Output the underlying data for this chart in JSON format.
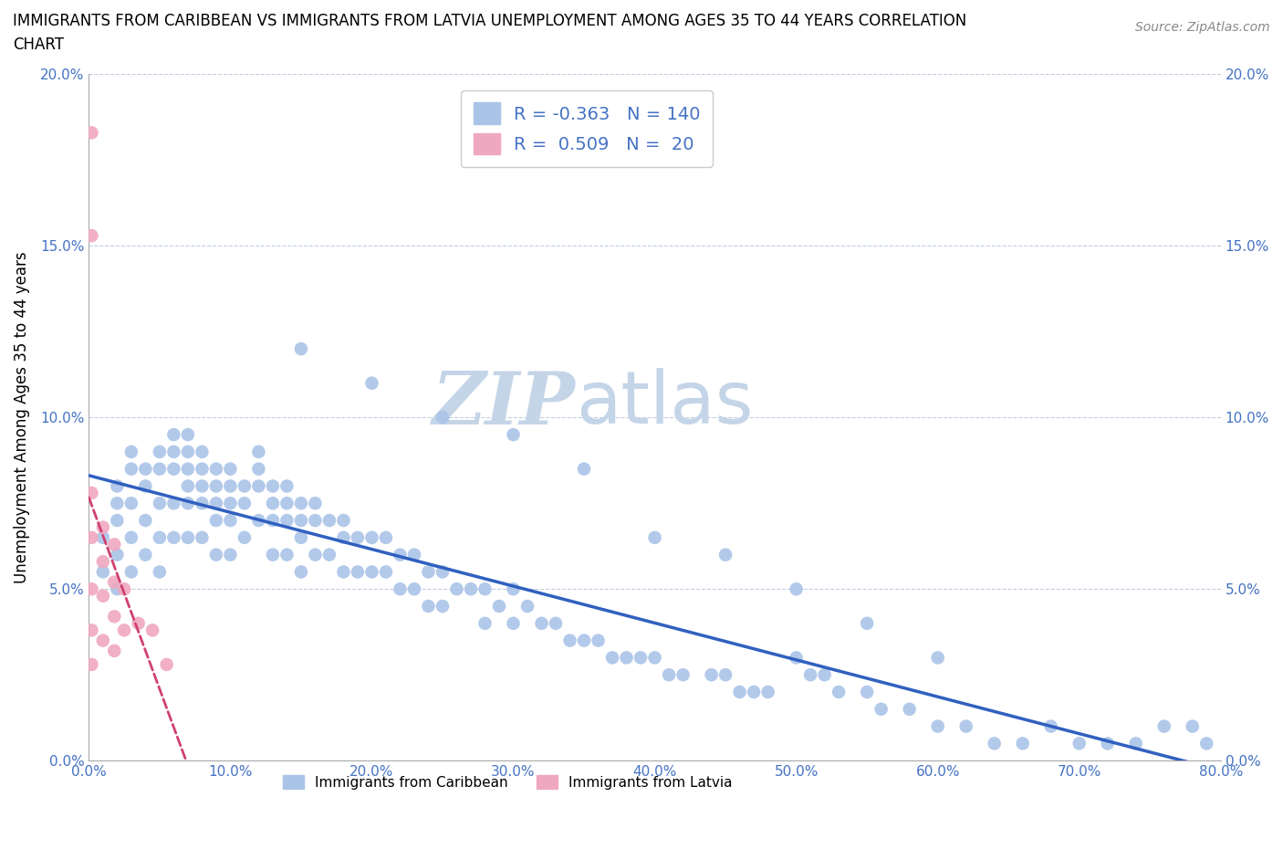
{
  "title_line1": "IMMIGRANTS FROM CARIBBEAN VS IMMIGRANTS FROM LATVIA UNEMPLOYMENT AMONG AGES 35 TO 44 YEARS CORRELATION",
  "title_line2": "CHART",
  "source": "Source: ZipAtlas.com",
  "ylabel": "Unemployment Among Ages 35 to 44 years",
  "xlim": [
    0.0,
    0.8
  ],
  "ylim": [
    0.0,
    0.2
  ],
  "xticks": [
    0.0,
    0.1,
    0.2,
    0.3,
    0.4,
    0.5,
    0.6,
    0.7,
    0.8
  ],
  "xticklabels": [
    "0.0%",
    "10.0%",
    "20.0%",
    "30.0%",
    "40.0%",
    "50.0%",
    "60.0%",
    "70.0%",
    "80.0%"
  ],
  "yticks": [
    0.0,
    0.05,
    0.1,
    0.15,
    0.2
  ],
  "yticklabels": [
    "0.0%",
    "5.0%",
    "10.0%",
    "15.0%",
    "20.0%"
  ],
  "caribbean_color": "#aac4e8",
  "latvia_color": "#f0a8c0",
  "trend_caribbean_color": "#3060c0",
  "trend_latvia_color": "#d04070",
  "watermark_zip": "ZIP",
  "watermark_atlas": "atlas",
  "watermark_color": "#c5d5e8",
  "legend_R_caribbean": "-0.363",
  "legend_N_caribbean": "140",
  "legend_R_latvia": "0.509",
  "legend_N_latvia": "20",
  "legend_label_caribbean": "Immigrants from Caribbean",
  "legend_label_latvia": "Immigrants from Latvia",
  "caribbean_x": [
    0.01,
    0.01,
    0.02,
    0.02,
    0.02,
    0.02,
    0.02,
    0.03,
    0.03,
    0.03,
    0.03,
    0.03,
    0.04,
    0.04,
    0.04,
    0.04,
    0.05,
    0.05,
    0.05,
    0.05,
    0.05,
    0.06,
    0.06,
    0.06,
    0.06,
    0.06,
    0.07,
    0.07,
    0.07,
    0.07,
    0.07,
    0.07,
    0.08,
    0.08,
    0.08,
    0.08,
    0.08,
    0.09,
    0.09,
    0.09,
    0.09,
    0.09,
    0.1,
    0.1,
    0.1,
    0.1,
    0.1,
    0.11,
    0.11,
    0.11,
    0.12,
    0.12,
    0.12,
    0.12,
    0.13,
    0.13,
    0.13,
    0.13,
    0.14,
    0.14,
    0.14,
    0.14,
    0.15,
    0.15,
    0.15,
    0.15,
    0.16,
    0.16,
    0.16,
    0.17,
    0.17,
    0.18,
    0.18,
    0.18,
    0.19,
    0.19,
    0.2,
    0.2,
    0.21,
    0.21,
    0.22,
    0.22,
    0.23,
    0.23,
    0.24,
    0.24,
    0.25,
    0.25,
    0.26,
    0.27,
    0.28,
    0.28,
    0.29,
    0.3,
    0.3,
    0.31,
    0.32,
    0.33,
    0.34,
    0.35,
    0.36,
    0.37,
    0.38,
    0.39,
    0.4,
    0.41,
    0.42,
    0.44,
    0.45,
    0.46,
    0.47,
    0.48,
    0.5,
    0.51,
    0.52,
    0.53,
    0.55,
    0.56,
    0.58,
    0.6,
    0.62,
    0.64,
    0.66,
    0.68,
    0.7,
    0.72,
    0.74,
    0.76,
    0.78,
    0.79,
    0.15,
    0.2,
    0.25,
    0.3,
    0.35,
    0.4,
    0.45,
    0.5,
    0.55,
    0.6
  ],
  "caribbean_y": [
    0.065,
    0.055,
    0.08,
    0.075,
    0.07,
    0.06,
    0.05,
    0.09,
    0.085,
    0.075,
    0.065,
    0.055,
    0.085,
    0.08,
    0.07,
    0.06,
    0.09,
    0.085,
    0.075,
    0.065,
    0.055,
    0.095,
    0.09,
    0.085,
    0.075,
    0.065,
    0.095,
    0.09,
    0.085,
    0.08,
    0.075,
    0.065,
    0.09,
    0.085,
    0.08,
    0.075,
    0.065,
    0.085,
    0.08,
    0.075,
    0.07,
    0.06,
    0.085,
    0.08,
    0.075,
    0.07,
    0.06,
    0.08,
    0.075,
    0.065,
    0.09,
    0.085,
    0.08,
    0.07,
    0.08,
    0.075,
    0.07,
    0.06,
    0.08,
    0.075,
    0.07,
    0.06,
    0.075,
    0.07,
    0.065,
    0.055,
    0.075,
    0.07,
    0.06,
    0.07,
    0.06,
    0.07,
    0.065,
    0.055,
    0.065,
    0.055,
    0.065,
    0.055,
    0.065,
    0.055,
    0.06,
    0.05,
    0.06,
    0.05,
    0.055,
    0.045,
    0.055,
    0.045,
    0.05,
    0.05,
    0.05,
    0.04,
    0.045,
    0.05,
    0.04,
    0.045,
    0.04,
    0.04,
    0.035,
    0.035,
    0.035,
    0.03,
    0.03,
    0.03,
    0.03,
    0.025,
    0.025,
    0.025,
    0.025,
    0.02,
    0.02,
    0.02,
    0.03,
    0.025,
    0.025,
    0.02,
    0.02,
    0.015,
    0.015,
    0.01,
    0.01,
    0.005,
    0.005,
    0.01,
    0.005,
    0.005,
    0.005,
    0.01,
    0.01,
    0.005,
    0.12,
    0.11,
    0.1,
    0.095,
    0.085,
    0.065,
    0.06,
    0.05,
    0.04,
    0.03
  ],
  "latvia_x": [
    0.002,
    0.002,
    0.002,
    0.002,
    0.002,
    0.002,
    0.002,
    0.01,
    0.01,
    0.01,
    0.01,
    0.018,
    0.018,
    0.018,
    0.018,
    0.025,
    0.025,
    0.035,
    0.045,
    0.055
  ],
  "latvia_y": [
    0.183,
    0.153,
    0.078,
    0.065,
    0.05,
    0.038,
    0.028,
    0.068,
    0.058,
    0.048,
    0.035,
    0.063,
    0.052,
    0.042,
    0.032,
    0.05,
    0.038,
    0.04,
    0.038,
    0.028
  ]
}
